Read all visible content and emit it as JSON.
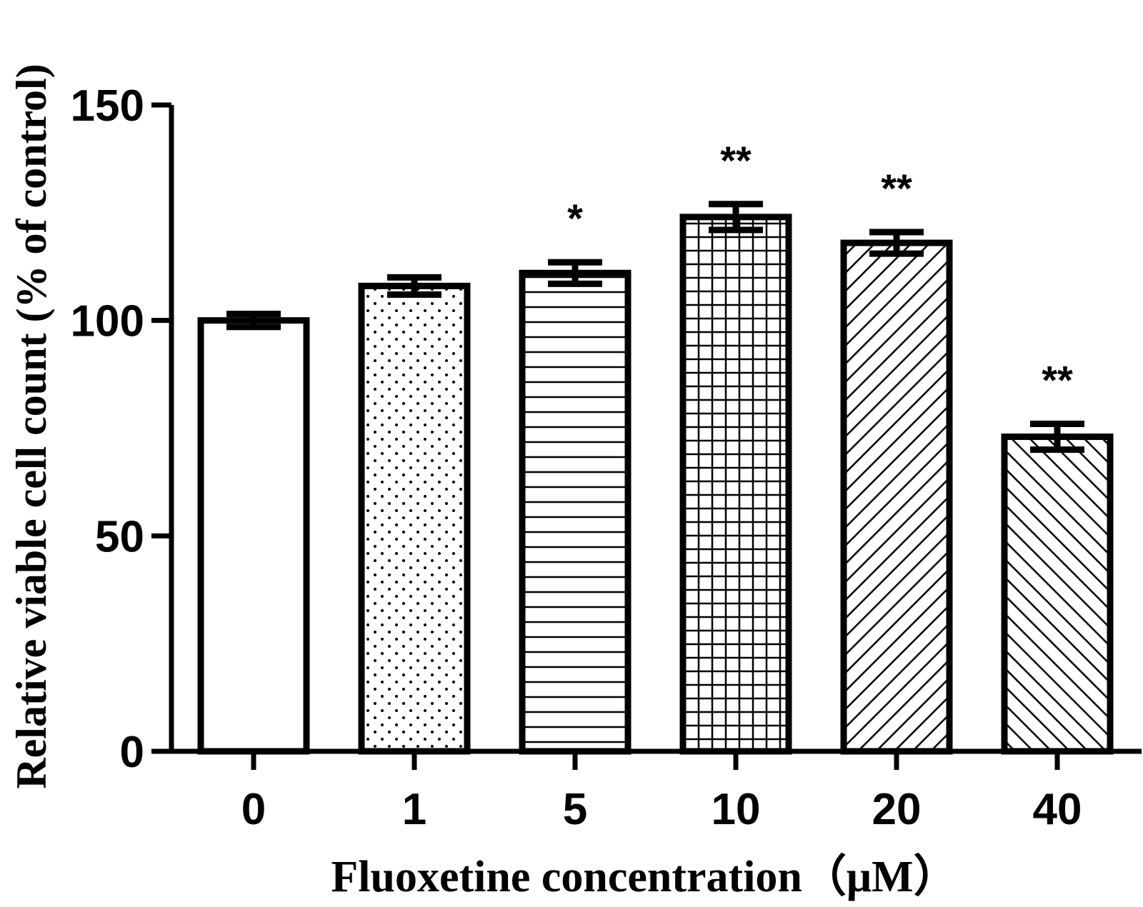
{
  "chart_data": {
    "type": "bar",
    "categories": [
      "0",
      "1",
      "5",
      "10",
      "20",
      "40"
    ],
    "values": [
      100,
      108,
      111,
      124,
      118,
      73
    ],
    "errors": [
      1.5,
      2,
      2.5,
      3,
      2.5,
      3
    ],
    "significance": [
      "",
      "",
      "*",
      "**",
      "**",
      "**"
    ],
    "patterns": [
      "none",
      "dots",
      "hlines",
      "grid",
      "diag-up",
      "diag-down"
    ],
    "xlabel": "Fluoxetine concentration（μM）",
    "ylabel": "Relative viable cell count (% of control)",
    "ylim": [
      0,
      150
    ],
    "yticks": [
      0,
      50,
      100,
      150
    ],
    "bar_color": "#ffffff",
    "edge_color": "#000000",
    "grid": false,
    "legend": "none"
  }
}
